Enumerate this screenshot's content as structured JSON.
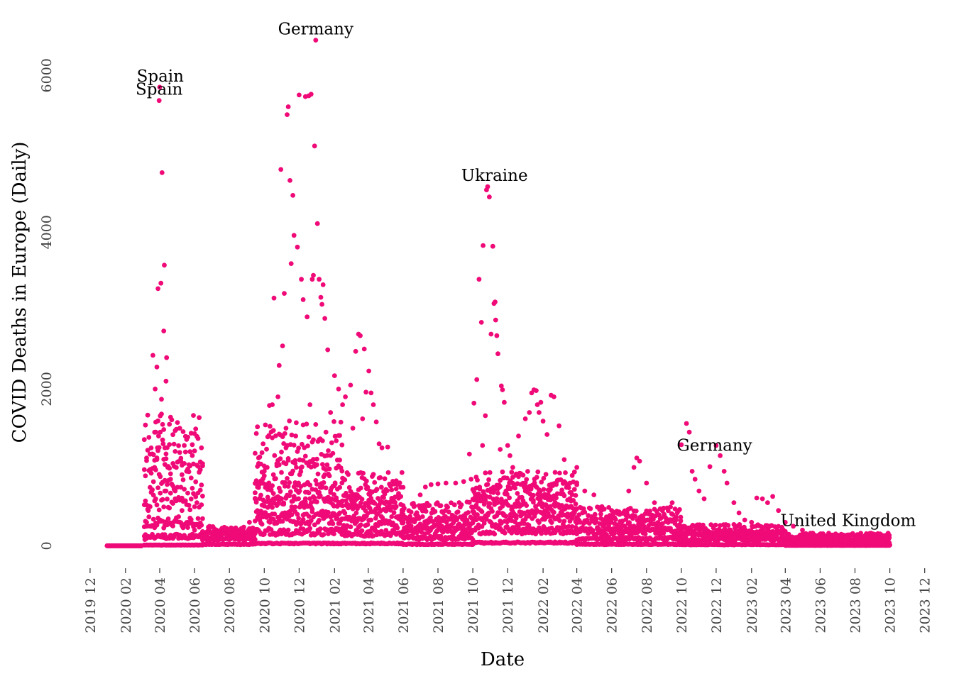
{
  "chart_data": {
    "type": "scatter",
    "title": "",
    "xlabel": "Date",
    "ylabel": "COVID Deaths in Europe (Daily)",
    "x_type": "date",
    "xlim": [
      "2019-11-20",
      "2023-12-20"
    ],
    "ylim": [
      -150,
      6600
    ],
    "grid": false,
    "legend": "none",
    "colors": {
      "points": "#ef0a78",
      "text": "#000000",
      "ticks": "#444444"
    },
    "x_ticks": [
      {
        "date": "2019-12-01",
        "label": "2019 12"
      },
      {
        "date": "2020-02-01",
        "label": "2020 02"
      },
      {
        "date": "2020-04-01",
        "label": "2020 04"
      },
      {
        "date": "2020-06-01",
        "label": "2020 06"
      },
      {
        "date": "2020-08-01",
        "label": "2020 08"
      },
      {
        "date": "2020-10-01",
        "label": "2020 10"
      },
      {
        "date": "2020-12-01",
        "label": "2020 12"
      },
      {
        "date": "2021-02-01",
        "label": "2021 02"
      },
      {
        "date": "2021-04-01",
        "label": "2021 04"
      },
      {
        "date": "2021-06-01",
        "label": "2021 06"
      },
      {
        "date": "2021-08-01",
        "label": "2021 08"
      },
      {
        "date": "2021-10-01",
        "label": "2021 10"
      },
      {
        "date": "2021-12-01",
        "label": "2021 12"
      },
      {
        "date": "2022-02-01",
        "label": "2022 02"
      },
      {
        "date": "2022-04-01",
        "label": "2022 04"
      },
      {
        "date": "2022-06-01",
        "label": "2022 06"
      },
      {
        "date": "2022-08-01",
        "label": "2022 08"
      },
      {
        "date": "2022-10-01",
        "label": "2022 10"
      },
      {
        "date": "2022-12-01",
        "label": "2022 12"
      },
      {
        "date": "2023-02-01",
        "label": "2023 02"
      },
      {
        "date": "2023-04-01",
        "label": "2023 04"
      },
      {
        "date": "2023-06-01",
        "label": "2023 06"
      },
      {
        "date": "2023-08-01",
        "label": "2023 08"
      },
      {
        "date": "2023-10-01",
        "label": "2023 10"
      },
      {
        "date": "2023-12-01",
        "label": "2023 12"
      }
    ],
    "y_ticks": [
      {
        "value": 0,
        "label": "0"
      },
      {
        "value": 2000,
        "label": "2000"
      },
      {
        "value": 4000,
        "label": "4000"
      },
      {
        "value": 6000,
        "label": "6000"
      }
    ],
    "annotations": [
      {
        "text": "Spain",
        "x": "2020-04-02",
        "y": 5850
      },
      {
        "text": "Spain",
        "x": "2020-03-31",
        "y": 5680
      },
      {
        "text": "Germany",
        "x": "2020-12-30",
        "y": 6450
      },
      {
        "text": "Ukraine",
        "x": "2021-11-08",
        "y": 4580
      },
      {
        "text": "Germany",
        "x": "2022-11-28",
        "y": 1140
      },
      {
        "text": "United Kingdom",
        "x": "2023-07-20",
        "y": 180
      }
    ],
    "series": [
      {
        "name": "",
        "points": [
          [
            "2019-12-31",
            0
          ],
          [
            "2020-01-20",
            0
          ],
          [
            "2020-02-10",
            0
          ],
          [
            "2020-02-25",
            0
          ],
          [
            "2020-03-06",
            80
          ],
          [
            "2020-03-09",
            250
          ],
          [
            "2020-03-12",
            450
          ],
          [
            "2020-03-15",
            500
          ],
          [
            "2020-03-18",
            700
          ],
          [
            "2020-03-20",
            2430
          ],
          [
            "2020-03-23",
            1000
          ],
          [
            "2020-03-24",
            2000
          ],
          [
            "2020-03-25",
            1450
          ],
          [
            "2020-03-27",
            2280
          ],
          [
            "2020-03-28",
            1250
          ],
          [
            "2020-03-29",
            3280
          ],
          [
            "2020-03-30",
            1400
          ],
          [
            "2020-03-31",
            5680
          ],
          [
            "2020-04-01",
            5850
          ],
          [
            "2020-04-02",
            1450
          ],
          [
            "2020-04-03",
            3350
          ],
          [
            "2020-04-04",
            1870
          ],
          [
            "2020-04-05",
            4760
          ],
          [
            "2020-04-06",
            1350
          ],
          [
            "2020-04-07",
            1300
          ],
          [
            "2020-04-08",
            2740
          ],
          [
            "2020-04-09",
            3580
          ],
          [
            "2020-04-10",
            1250
          ],
          [
            "2020-04-12",
            2100
          ],
          [
            "2020-04-13",
            2400
          ],
          [
            "2020-04-15",
            1000
          ],
          [
            "2020-04-18",
            1550
          ],
          [
            "2020-04-20",
            850
          ],
          [
            "2020-04-24",
            1050
          ],
          [
            "2020-04-28",
            700
          ],
          [
            "2020-05-03",
            600
          ],
          [
            "2020-05-10",
            450
          ],
          [
            "2020-05-20",
            300
          ],
          [
            "2020-06-01",
            200
          ],
          [
            "2020-06-15",
            180
          ],
          [
            "2020-07-01",
            160
          ],
          [
            "2020-07-20",
            150
          ],
          [
            "2020-08-10",
            140
          ],
          [
            "2020-08-25",
            200
          ],
          [
            "2020-09-05",
            300
          ],
          [
            "2020-09-15",
            600
          ],
          [
            "2020-09-22",
            800
          ],
          [
            "2020-10-01",
            950
          ],
          [
            "2020-10-06",
            1000
          ],
          [
            "2020-10-10",
            1790
          ],
          [
            "2020-10-15",
            1800
          ],
          [
            "2020-10-18",
            3160
          ],
          [
            "2020-10-25",
            1900
          ],
          [
            "2020-10-27",
            2300
          ],
          [
            "2020-10-30",
            4800
          ],
          [
            "2020-11-02",
            2550
          ],
          [
            "2020-11-05",
            3220
          ],
          [
            "2020-11-08",
            1500
          ],
          [
            "2020-11-10",
            5500
          ],
          [
            "2020-11-12",
            5600
          ],
          [
            "2020-11-15",
            4660
          ],
          [
            "2020-11-17",
            3600
          ],
          [
            "2020-11-20",
            4470
          ],
          [
            "2020-11-22",
            3960
          ],
          [
            "2020-11-25",
            1400
          ],
          [
            "2020-11-28",
            3810
          ],
          [
            "2020-12-01",
            5750
          ],
          [
            "2020-12-05",
            3400
          ],
          [
            "2020-12-08",
            3140
          ],
          [
            "2020-12-12",
            5730
          ],
          [
            "2020-12-15",
            2920
          ],
          [
            "2020-12-18",
            5740
          ],
          [
            "2020-12-20",
            1800
          ],
          [
            "2020-12-22",
            5760
          ],
          [
            "2020-12-24",
            3400
          ],
          [
            "2020-12-26",
            3450
          ],
          [
            "2020-12-28",
            5100
          ],
          [
            "2020-12-30",
            6450
          ],
          [
            "2021-01-02",
            4110
          ],
          [
            "2021-01-05",
            3400
          ],
          [
            "2021-01-08",
            3170
          ],
          [
            "2021-01-10",
            3080
          ],
          [
            "2021-01-12",
            3330
          ],
          [
            "2021-01-15",
            2900
          ],
          [
            "2021-01-20",
            2500
          ],
          [
            "2021-01-25",
            1700
          ],
          [
            "2021-02-01",
            2170
          ],
          [
            "2021-02-08",
            2000
          ],
          [
            "2021-02-15",
            1800
          ],
          [
            "2021-02-20",
            1900
          ],
          [
            "2021-03-01",
            2050
          ],
          [
            "2021-03-05",
            1500
          ],
          [
            "2021-03-10",
            2480
          ],
          [
            "2021-03-15",
            2700
          ],
          [
            "2021-03-18",
            2680
          ],
          [
            "2021-03-22",
            1620
          ],
          [
            "2021-03-25",
            2510
          ],
          [
            "2021-03-28",
            1960
          ],
          [
            "2021-04-02",
            2230
          ],
          [
            "2021-04-06",
            1950
          ],
          [
            "2021-04-10",
            1800
          ],
          [
            "2021-04-15",
            1580
          ],
          [
            "2021-04-20",
            1300
          ],
          [
            "2021-04-25",
            1250
          ],
          [
            "2021-05-05",
            1260
          ],
          [
            "2021-05-15",
            600
          ],
          [
            "2021-05-20",
            500
          ],
          [
            "2021-06-01",
            400
          ],
          [
            "2021-06-10",
            300
          ],
          [
            "2021-06-20",
            500
          ],
          [
            "2021-07-01",
            650
          ],
          [
            "2021-07-10",
            750
          ],
          [
            "2021-07-20",
            780
          ],
          [
            "2021-08-01",
            790
          ],
          [
            "2021-08-15",
            800
          ],
          [
            "2021-09-01",
            800
          ],
          [
            "2021-09-15",
            820
          ],
          [
            "2021-09-25",
            1170
          ],
          [
            "2021-09-28",
            850
          ],
          [
            "2021-10-03",
            1820
          ],
          [
            "2021-10-08",
            2120
          ],
          [
            "2021-10-12",
            3400
          ],
          [
            "2021-10-16",
            2850
          ],
          [
            "2021-10-18",
            1280
          ],
          [
            "2021-10-19",
            3830
          ],
          [
            "2021-10-23",
            1660
          ],
          [
            "2021-10-25",
            4540
          ],
          [
            "2021-10-27",
            4580
          ],
          [
            "2021-10-30",
            4450
          ],
          [
            "2021-11-02",
            2700
          ],
          [
            "2021-11-05",
            3820
          ],
          [
            "2021-11-07",
            3090
          ],
          [
            "2021-11-09",
            3110
          ],
          [
            "2021-11-10",
            2880
          ],
          [
            "2021-11-12",
            2680
          ],
          [
            "2021-11-14",
            2450
          ],
          [
            "2021-11-18",
            1230
          ],
          [
            "2021-11-20",
            2040
          ],
          [
            "2021-11-22",
            1990
          ],
          [
            "2021-11-25",
            1830
          ],
          [
            "2021-12-01",
            1280
          ],
          [
            "2021-12-05",
            1150
          ],
          [
            "2021-12-10",
            1000
          ],
          [
            "2021-12-15",
            900
          ],
          [
            "2021-12-20",
            1400
          ],
          [
            "2022-01-01",
            1620
          ],
          [
            "2022-01-08",
            1700
          ],
          [
            "2022-01-12",
            1950
          ],
          [
            "2022-01-16",
            1990
          ],
          [
            "2022-01-20",
            1980
          ],
          [
            "2022-01-22",
            1800
          ],
          [
            "2022-01-25",
            1700
          ],
          [
            "2022-01-28",
            1830
          ],
          [
            "2022-02-01",
            1590
          ],
          [
            "2022-02-08",
            1420
          ],
          [
            "2022-02-15",
            1920
          ],
          [
            "2022-02-20",
            1900
          ],
          [
            "2022-03-01",
            1530
          ],
          [
            "2022-03-10",
            1100
          ],
          [
            "2022-03-20",
            800
          ],
          [
            "2022-04-01",
            1000
          ],
          [
            "2022-04-15",
            700
          ],
          [
            "2022-05-01",
            650
          ],
          [
            "2022-05-15",
            500
          ],
          [
            "2022-06-01",
            450
          ],
          [
            "2022-06-15",
            400
          ],
          [
            "2022-07-01",
            700
          ],
          [
            "2022-07-10",
            1000
          ],
          [
            "2022-07-15",
            1120
          ],
          [
            "2022-07-20",
            1080
          ],
          [
            "2022-08-01",
            800
          ],
          [
            "2022-08-15",
            550
          ],
          [
            "2022-09-01",
            400
          ],
          [
            "2022-09-15",
            550
          ],
          [
            "2022-10-01",
            1290
          ],
          [
            "2022-10-10",
            1560
          ],
          [
            "2022-10-15",
            1450
          ],
          [
            "2022-10-20",
            950
          ],
          [
            "2022-10-25",
            850
          ],
          [
            "2022-11-01",
            700
          ],
          [
            "2022-11-10",
            600
          ],
          [
            "2022-11-20",
            1010
          ],
          [
            "2022-12-01",
            1280
          ],
          [
            "2022-12-08",
            1150
          ],
          [
            "2022-12-15",
            950
          ],
          [
            "2022-12-20",
            800
          ],
          [
            "2023-01-01",
            550
          ],
          [
            "2023-01-10",
            420
          ],
          [
            "2023-01-20",
            330
          ],
          [
            "2023-02-01",
            300
          ],
          [
            "2023-02-10",
            610
          ],
          [
            "2023-02-20",
            600
          ],
          [
            "2023-03-01",
            550
          ],
          [
            "2023-03-10",
            630
          ],
          [
            "2023-03-20",
            450
          ],
          [
            "2023-04-01",
            300
          ],
          [
            "2023-04-15",
            250
          ],
          [
            "2023-05-01",
            200
          ],
          [
            "2023-05-15",
            160
          ],
          [
            "2023-06-01",
            120
          ],
          [
            "2023-06-15",
            100
          ],
          [
            "2023-07-01",
            90
          ],
          [
            "2023-07-20",
            70
          ],
          [
            "2023-08-01",
            60
          ],
          [
            "2023-08-20",
            50
          ],
          [
            "2023-09-01",
            40
          ],
          [
            "2023-09-20",
            25
          ],
          [
            "2023-10-01",
            10
          ]
        ]
      }
    ],
    "dense_bands": [
      {
        "start": "2019-12-31",
        "end": "2020-03-01",
        "levels": [
          0,
          0,
          0,
          0
        ]
      },
      {
        "start": "2020-03-05",
        "end": "2020-06-15",
        "levels": [
          10,
          120,
          300,
          600,
          1000,
          1350
        ]
      },
      {
        "start": "2020-06-15",
        "end": "2020-09-15",
        "levels": [
          20,
          90,
          160,
          200
        ]
      },
      {
        "start": "2020-09-15",
        "end": "2021-02-15",
        "levels": [
          30,
          180,
          350,
          500,
          650,
          900,
          1300
        ]
      },
      {
        "start": "2021-02-15",
        "end": "2021-06-01",
        "levels": [
          30,
          160,
          300,
          450,
          600,
          750
        ]
      },
      {
        "start": "2021-06-01",
        "end": "2021-10-01",
        "levels": [
          20,
          100,
          200,
          300,
          450
        ]
      },
      {
        "start": "2021-10-01",
        "end": "2022-04-01",
        "levels": [
          40,
          200,
          350,
          500,
          650,
          760
        ]
      },
      {
        "start": "2022-04-01",
        "end": "2022-10-01",
        "levels": [
          20,
          90,
          180,
          280,
          400
        ]
      },
      {
        "start": "2022-10-01",
        "end": "2023-04-01",
        "levels": [
          15,
          80,
          150,
          220
        ]
      },
      {
        "start": "2023-04-01",
        "end": "2023-10-01",
        "levels": [
          5,
          40,
          90,
          130
        ]
      }
    ]
  }
}
